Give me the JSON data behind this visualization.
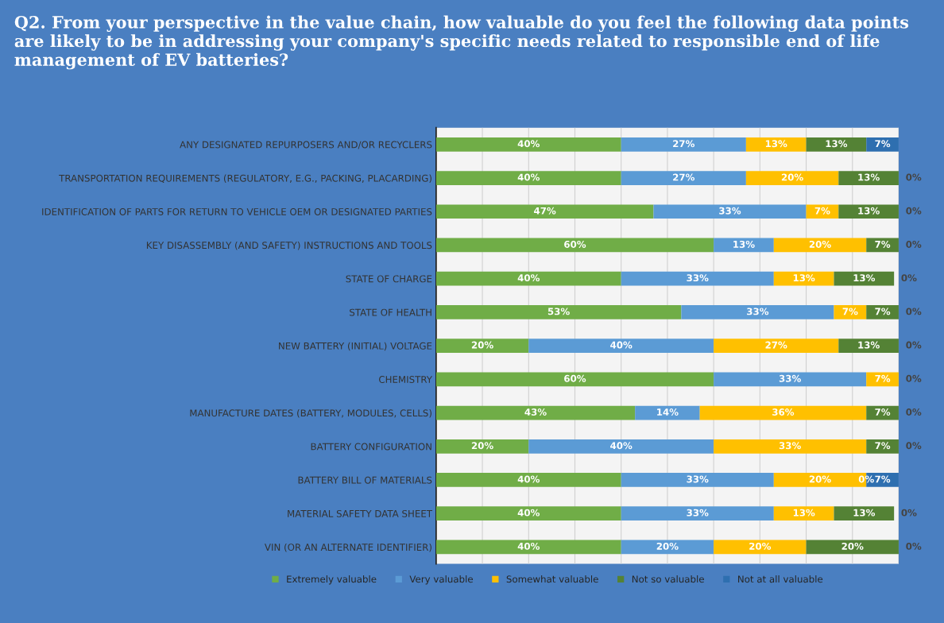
{
  "chart_data": {
    "type": "bar",
    "orientation": "horizontal",
    "stacked": true,
    "title": "Q2. From your perspective in the value chain, how valuable do you feel the following data points are likely to be in addressing your company's specific needs related to responsible end of life management of EV batteries?",
    "categories": [
      "ANY DESIGNATED REPURPOSERS AND/OR RECYCLERS",
      "TRANSPORTATION REQUIREMENTS (REGULATORY, E.G., PACKING, PLACARDING)",
      "IDENTIFICATION OF PARTS FOR RETURN TO VEHICLE OEM OR DESIGNATED PARTIES",
      "KEY DISASSEMBLY (AND SAFETY) INSTRUCTIONS AND TOOLS",
      "STATE OF CHARGE",
      "STATE OF HEALTH",
      "NEW BATTERY (INITIAL) VOLTAGE",
      "CHEMISTRY",
      "MANUFACTURE DATES (BATTERY, MODULES, CELLS)",
      "BATTERY CONFIGURATION",
      "BATTERY BILL OF MATERIALS",
      "MATERIAL SAFETY DATA SHEET",
      "VIN (OR AN ALTERNATE IDENTIFIER)"
    ],
    "series": [
      {
        "name": "Extremely valuable",
        "color": "#70ad47",
        "values": [
          40,
          40,
          47,
          60,
          40,
          53,
          20,
          60,
          43,
          20,
          40,
          40,
          40
        ],
        "value_labels": [
          "40%",
          "40%",
          "47%",
          "60%",
          "40%",
          "53%",
          "20%",
          "60%",
          "43%",
          "20%",
          "40%",
          "40%",
          "40%"
        ]
      },
      {
        "name": "Very valuable",
        "color": "#5b9bd5",
        "values": [
          27,
          27,
          33,
          13,
          33,
          33,
          40,
          33,
          14,
          40,
          33,
          33,
          20
        ],
        "value_labels": [
          "27%",
          "27%",
          "33%",
          "13%",
          "33%",
          "33%",
          "40%",
          "33%",
          "14%",
          "40%",
          "33%",
          "33%",
          "20%"
        ]
      },
      {
        "name": "Somewhat valuable",
        "color": "#ffc000",
        "values": [
          13,
          20,
          7,
          20,
          13,
          7,
          27,
          7,
          36,
          33,
          20,
          13,
          20
        ],
        "value_labels": [
          "13%",
          "20%",
          "7%",
          "20%",
          "13%",
          "7%",
          "27%",
          "7%",
          "36%",
          "33%",
          "20%",
          "13%",
          "20%"
        ]
      },
      {
        "name": "Not so valuable",
        "color": "#548235",
        "values": [
          13,
          13,
          13,
          7,
          13,
          7,
          13,
          0,
          7,
          7,
          0,
          13,
          20
        ],
        "value_labels": [
          "13%",
          "13%",
          "13%",
          "7%",
          "13%",
          "7%",
          "13%",
          null,
          "7%",
          "7%",
          "0%",
          "13%",
          "20%"
        ]
      },
      {
        "name": "Not at all valuable",
        "color": "#2e6fb0",
        "values": [
          7,
          0,
          0,
          0,
          0,
          0,
          0,
          0,
          0,
          0,
          7,
          0,
          0
        ],
        "value_labels": [
          "7%",
          "0%",
          "0%",
          "0%",
          "0%",
          "0%",
          "0%",
          "0%",
          "0%",
          "0%",
          "7%",
          "0%",
          "0%"
        ]
      }
    ],
    "xlim": [
      0,
      100
    ],
    "xticks": [
      {
        "value": 0,
        "label": null
      },
      {
        "value": 10,
        "label": null
      },
      {
        "value": 20,
        "label": null
      },
      {
        "value": 30,
        "label": null
      },
      {
        "value": 40,
        "label": null
      },
      {
        "value": 50,
        "label": null
      },
      {
        "value": 60,
        "label": null
      },
      {
        "value": 70,
        "label": null
      },
      {
        "value": 80,
        "label": null
      },
      {
        "value": 90,
        "label": null
      },
      {
        "value": 100,
        "label": null
      }
    ],
    "tick_labels": "y",
    "grid": "x",
    "legend": "bottom"
  }
}
